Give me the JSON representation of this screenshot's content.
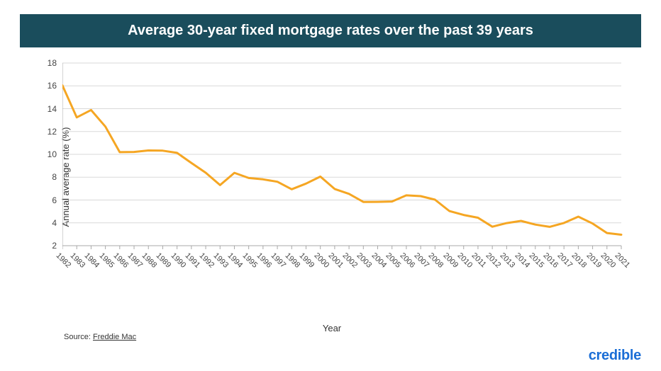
{
  "title": "Average 30-year fixed mortgage rates over the past 39 years",
  "chart": {
    "type": "line",
    "xlabel": "Year",
    "ylabel": "Annual average rate (%)",
    "ylim": [
      2,
      18
    ],
    "ytick_step": 2,
    "yticks": [
      2,
      4,
      6,
      8,
      10,
      12,
      14,
      16,
      18
    ],
    "years": [
      1982,
      1983,
      1984,
      1985,
      1986,
      1987,
      1988,
      1989,
      1990,
      1991,
      1992,
      1993,
      1994,
      1995,
      1996,
      1997,
      1998,
      1999,
      2000,
      2001,
      2002,
      2003,
      2004,
      2005,
      2006,
      2007,
      2008,
      2009,
      2010,
      2011,
      2012,
      2013,
      2014,
      2015,
      2016,
      2017,
      2018,
      2019,
      2020,
      2021
    ],
    "values": [
      16.04,
      13.24,
      13.88,
      12.43,
      10.19,
      10.21,
      10.34,
      10.32,
      10.13,
      9.25,
      8.39,
      7.31,
      8.38,
      7.93,
      7.81,
      7.6,
      6.94,
      7.44,
      8.05,
      6.97,
      6.54,
      5.83,
      5.84,
      5.87,
      6.41,
      6.34,
      6.03,
      5.04,
      4.69,
      4.45,
      3.66,
      3.98,
      4.17,
      3.85,
      3.65,
      3.99,
      4.54,
      3.94,
      3.11,
      2.96
    ],
    "line_color": "#f5a623",
    "line_width": 3,
    "background_color": "#ffffff",
    "grid_color": "#d9d9d9",
    "axis_color": "#a8a8a8",
    "tick_fontsize": 12,
    "label_fontsize": 13,
    "title_fontsize": 20,
    "title_bg": "#1a4d5c",
    "title_color": "#ffffff"
  },
  "source": {
    "prefix": "Source: ",
    "name": "Freddie Mac"
  },
  "brand": "credible"
}
